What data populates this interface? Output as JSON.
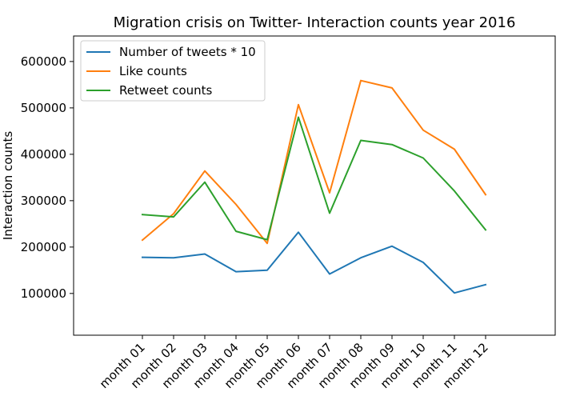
{
  "chart_data": {
    "type": "line",
    "title": "Migration crisis on Twitter- Interaction counts year 2016",
    "xlabel": "",
    "ylabel": "Interaction counts",
    "categories": [
      "month 01",
      "month 02",
      "month 03",
      "month 04",
      "month 05",
      "month 06",
      "month 07",
      "month 08",
      "month 09",
      "month 10",
      "month 11",
      "month 12"
    ],
    "ylim": [
      10000,
      655000
    ],
    "yticks": [
      100000,
      200000,
      300000,
      400000,
      500000,
      600000
    ],
    "ytick_labels": [
      "100000",
      "200000",
      "300000",
      "400000",
      "500000",
      "600000"
    ],
    "grid": false,
    "legend_position": "top-left",
    "series": [
      {
        "name": "Number of tweets * 10",
        "color": "#1f77b4",
        "values": [
          178000,
          177000,
          185000,
          147000,
          150000,
          232000,
          142000,
          177000,
          202000,
          167000,
          101000,
          119000
        ]
      },
      {
        "name": "Like counts",
        "color": "#ff7f0e",
        "values": [
          215000,
          272000,
          364000,
          292000,
          208000,
          507000,
          317000,
          559000,
          543000,
          452000,
          411000,
          313000
        ]
      },
      {
        "name": "Retweet counts",
        "color": "#2ca02c",
        "values": [
          270000,
          265000,
          340000,
          234000,
          216000,
          480000,
          273000,
          430000,
          421000,
          392000,
          321000,
          237000
        ]
      }
    ]
  }
}
